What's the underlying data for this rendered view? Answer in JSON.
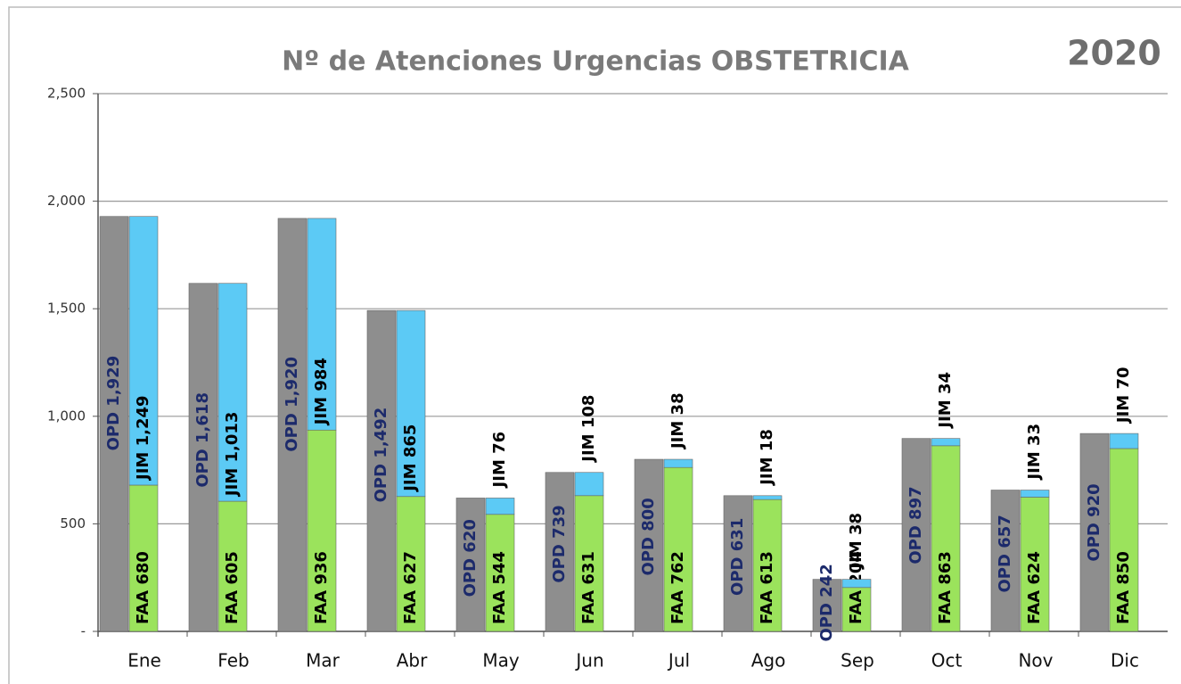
{
  "chart_data": {
    "type": "bar",
    "title": "Nº de Atenciones Urgencias OBSTETRICIA",
    "subtitle": "2020",
    "categories": [
      "Ene",
      "Feb",
      "Mar",
      "Abr",
      "May",
      "Jun",
      "Jul",
      "Ago",
      "Sep",
      "Oct",
      "Nov",
      "Dic"
    ],
    "series": [
      {
        "name": "OPD",
        "color": "#8e8e8e",
        "stack": "a",
        "values": [
          1929,
          1618,
          1920,
          1492,
          620,
          739,
          800,
          631,
          242,
          897,
          657,
          920
        ],
        "value_labels": [
          "1,929",
          "1,618",
          "1,920",
          "1,492",
          "620",
          "739",
          "800",
          "631",
          "242",
          "897",
          "657",
          "920"
        ]
      },
      {
        "name": "FAA",
        "color": "#9be35c",
        "stack": "b",
        "values": [
          680,
          605,
          936,
          627,
          544,
          631,
          762,
          613,
          204,
          863,
          624,
          850
        ],
        "value_labels": [
          "680",
          "605",
          "936",
          "627",
          "544",
          "631",
          "762",
          "613",
          "204",
          "863",
          "624",
          "850"
        ]
      },
      {
        "name": "JIM",
        "color": "#5ccaf5",
        "stack": "b",
        "values": [
          1249,
          1013,
          984,
          865,
          76,
          108,
          38,
          18,
          38,
          34,
          33,
          70
        ],
        "value_labels": [
          "1,249",
          "1,013",
          "984",
          "865",
          "76",
          "108",
          "38",
          "18",
          "38",
          "34",
          "33",
          "70"
        ]
      }
    ],
    "ylim": [
      0,
      2500
    ],
    "yticks": [
      {
        "value": 0,
        "label": "-"
      },
      500,
      {
        "value": 1000,
        "label": "1,000"
      },
      {
        "value": 1500,
        "label": "1,500"
      },
      {
        "value": 2000,
        "label": "2,000"
      },
      {
        "value": 2500,
        "label": "2,500"
      }
    ],
    "grid": true
  }
}
